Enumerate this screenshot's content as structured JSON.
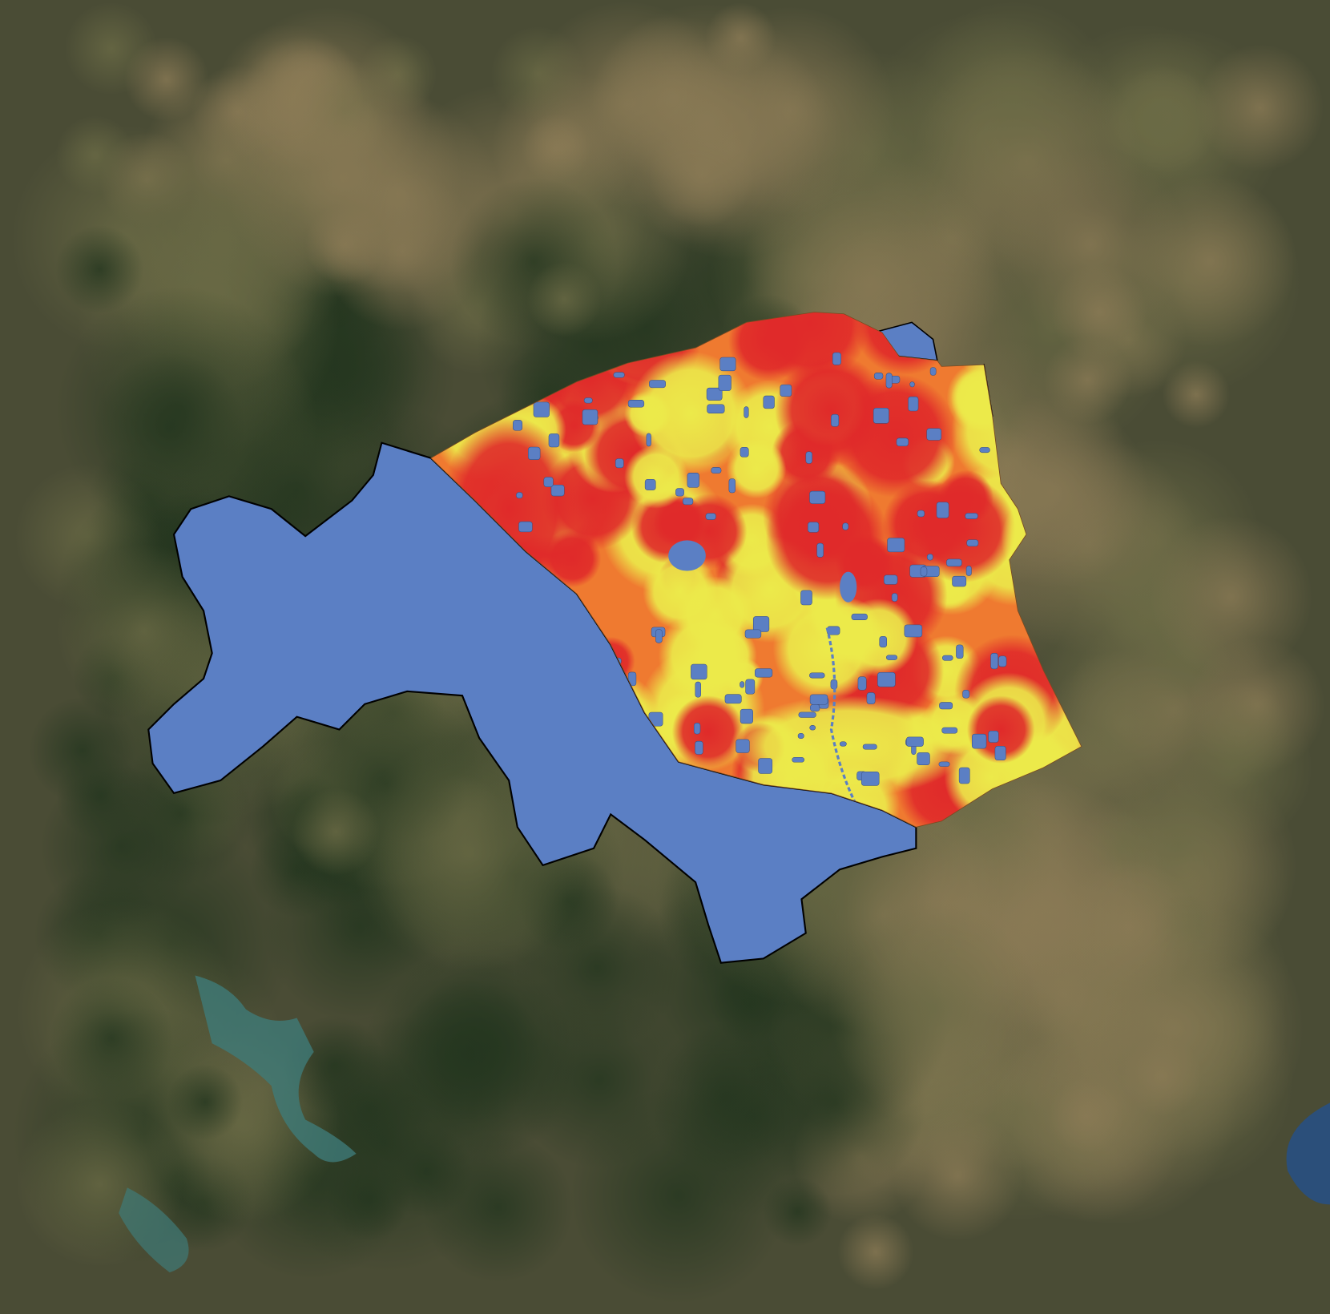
{
  "map": {
    "basemap": "satellite-imagery",
    "colors": {
      "masked_region": "#5b7fc4",
      "high": "#e0302a",
      "medium": "#ef7a30",
      "low": "#e8dc44",
      "boundary": "#000000"
    }
  }
}
